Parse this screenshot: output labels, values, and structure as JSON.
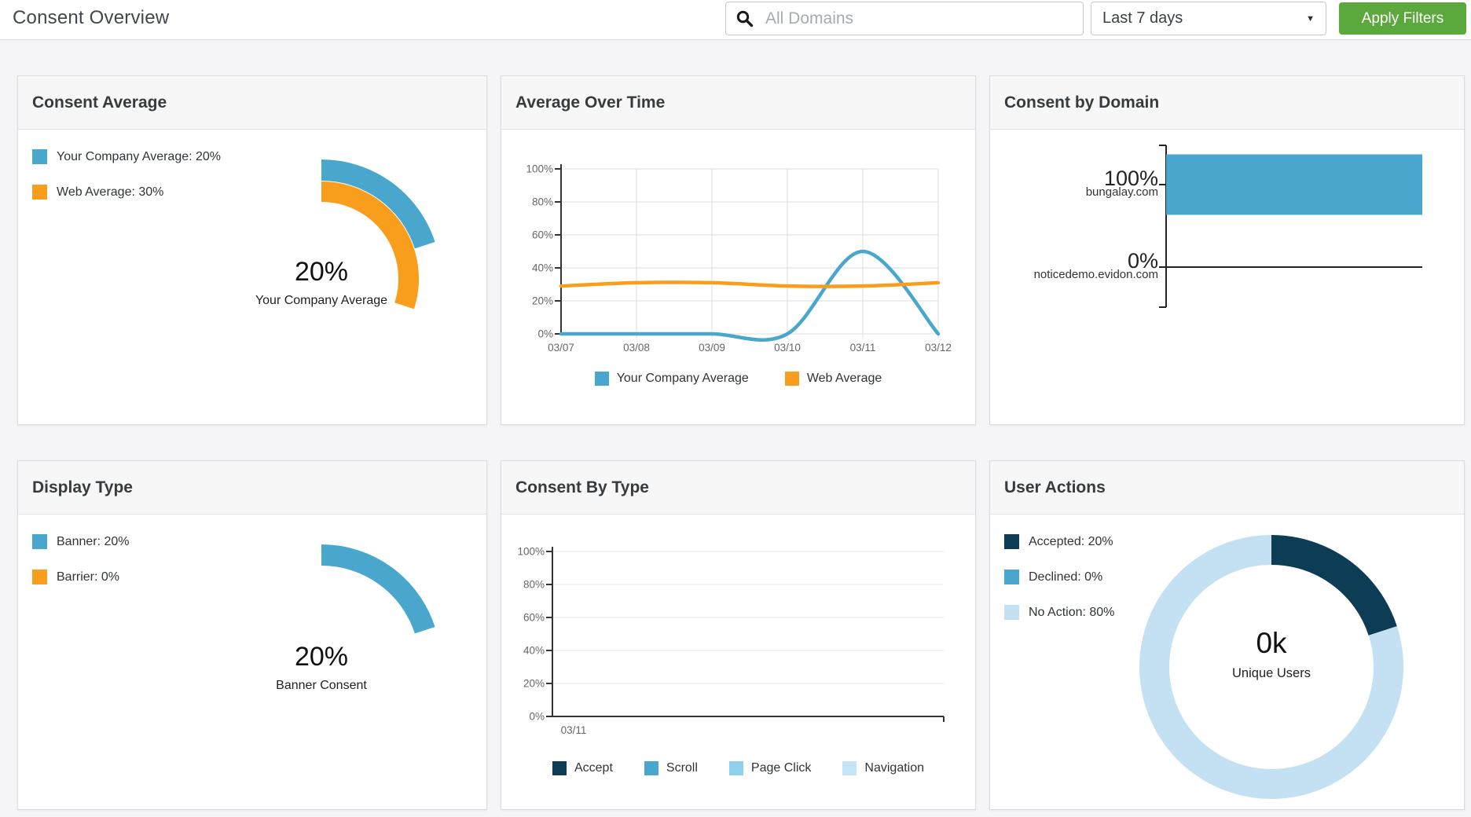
{
  "topbar": {
    "title": "Consent Overview",
    "search": {
      "placeholder": "All Domains",
      "value": ""
    },
    "date_range": {
      "selected": "Last 7 days"
    },
    "apply_button": "Apply Filters"
  },
  "colors": {
    "accent_green": "#5ba83c",
    "blue": "#49a7ce",
    "orange": "#f89d1c",
    "dark_navy": "#0d3c55",
    "pale_blue": "#8fd0ee",
    "lightest_blue": "#c5e5f6",
    "light_blue": "#c3e1f2"
  },
  "cards": {
    "consent_average": {
      "title": "Consent Average",
      "legend": [
        {
          "label": "Your Company Average: 20%",
          "color": "#49a7ce"
        },
        {
          "label": "Web Average: 30%",
          "color": "#f89d1c"
        }
      ]
    },
    "average_over_time": {
      "title": "Average Over Time",
      "legend": [
        {
          "label": "Your Company Average",
          "color": "#49a7ce"
        },
        {
          "label": "Web Average",
          "color": "#f89d1c"
        }
      ]
    },
    "consent_by_domain": {
      "title": "Consent by Domain"
    },
    "display_type": {
      "title": "Display Type",
      "legend": [
        {
          "label": "Banner: 20%",
          "color": "#49a7ce"
        },
        {
          "label": "Barrier: 0%",
          "color": "#f89d1c"
        }
      ]
    },
    "consent_by_type": {
      "title": "Consent By Type",
      "legend": [
        {
          "label": "Accept",
          "color": "#0d3c55"
        },
        {
          "label": "Scroll",
          "color": "#49a7ce"
        },
        {
          "label": "Page Click",
          "color": "#8fd0ee"
        },
        {
          "label": "Navigation",
          "color": "#c5e5f6"
        }
      ]
    },
    "user_actions": {
      "title": "User Actions",
      "legend": [
        {
          "label": "Accepted: 20%",
          "color": "#0d3c55"
        },
        {
          "label": "Declined: 0%",
          "color": "#49a7ce"
        },
        {
          "label": "No Action: 80%",
          "color": "#c3e1f2"
        }
      ]
    }
  },
  "chart_data": [
    {
      "id": "consent_average_gauge",
      "type": "pie",
      "subtype": "gauge",
      "max": 100,
      "series": [
        {
          "name": "Your Company Average",
          "value": 20,
          "color": "#49a7ce"
        },
        {
          "name": "Web Average",
          "value": 30,
          "color": "#f89d1c"
        }
      ],
      "center_text": "20%",
      "center_label": "Your Company Average"
    },
    {
      "id": "average_over_time",
      "type": "line",
      "x": [
        "03/07",
        "03/08",
        "03/09",
        "03/10",
        "03/11",
        "03/12"
      ],
      "series": [
        {
          "name": "Your Company Average",
          "color": "#49a7ce",
          "values": [
            0,
            0,
            0,
            0,
            50,
            0
          ]
        },
        {
          "name": "Web Average",
          "color": "#f89d1c",
          "values": [
            29,
            31,
            31,
            29,
            29,
            31
          ]
        }
      ],
      "ylim": [
        0,
        100
      ],
      "yticks": [
        "0%",
        "20%",
        "40%",
        "60%",
        "80%",
        "100%"
      ],
      "grid": true,
      "legend_position": "bottom"
    },
    {
      "id": "consent_by_domain",
      "type": "bar",
      "orientation": "horizontal",
      "categories": [
        "bungalay.com",
        "noticedemo.evidon.com"
      ],
      "values": [
        100,
        0
      ],
      "value_labels": [
        "100%",
        "0%"
      ],
      "bar_color": "#49a7ce",
      "xlim": [
        0,
        100
      ]
    },
    {
      "id": "display_type_gauge",
      "type": "pie",
      "subtype": "gauge",
      "max": 100,
      "series": [
        {
          "name": "Banner",
          "value": 20,
          "color": "#49a7ce"
        },
        {
          "name": "Barrier",
          "value": 0,
          "color": "#f89d1c"
        }
      ],
      "center_text": "20%",
      "center_label": "Banner Consent"
    },
    {
      "id": "consent_by_type",
      "type": "line",
      "x": [
        "03/11"
      ],
      "series": [
        {
          "name": "Accept",
          "color": "#0d3c55",
          "values": []
        },
        {
          "name": "Scroll",
          "color": "#49a7ce",
          "values": []
        },
        {
          "name": "Page Click",
          "color": "#8fd0ee",
          "values": []
        },
        {
          "name": "Navigation",
          "color": "#c5e5f6",
          "values": []
        }
      ],
      "ylim": [
        0,
        100
      ],
      "yticks": [
        "0%",
        "20%",
        "40%",
        "60%",
        "80%",
        "100%"
      ],
      "grid": true,
      "legend_position": "bottom"
    },
    {
      "id": "user_actions_donut",
      "type": "pie",
      "subtype": "donut",
      "series": [
        {
          "name": "Accepted",
          "value": 20,
          "color": "#0d3c55"
        },
        {
          "name": "Declined",
          "value": 0,
          "color": "#49a7ce"
        },
        {
          "name": "No Action",
          "value": 80,
          "color": "#c3e1f2"
        }
      ],
      "center_text": "0k",
      "center_label": "Unique Users"
    }
  ]
}
